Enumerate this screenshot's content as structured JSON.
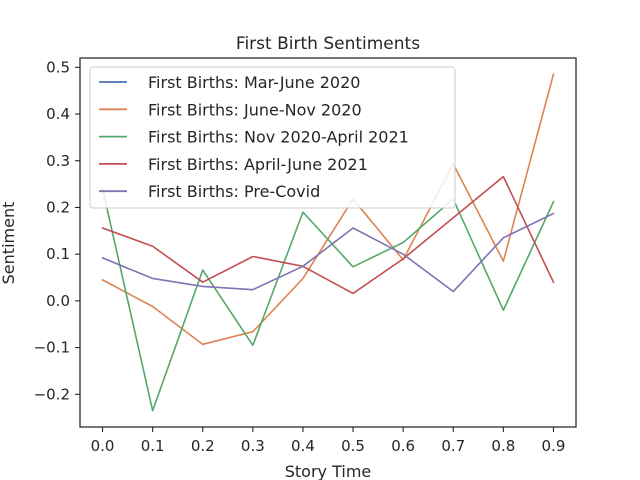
{
  "chart_data": {
    "type": "line",
    "title": "First Birth Sentiments",
    "xlabel": "Story Time",
    "ylabel": "Sentiment",
    "x": [
      0.0,
      0.1,
      0.2,
      0.3,
      0.4,
      0.5,
      0.6,
      0.7,
      0.8,
      0.9
    ],
    "xlim": [
      -0.045,
      0.945
    ],
    "ylim": [
      -0.27,
      0.52
    ],
    "x_ticks": [
      0.0,
      0.1,
      0.2,
      0.3,
      0.4,
      0.5,
      0.6,
      0.7,
      0.8,
      0.9
    ],
    "x_tick_labels": [
      "0.0",
      "0.1",
      "0.2",
      "0.3",
      "0.4",
      "0.5",
      "0.6",
      "0.7",
      "0.8",
      "0.9"
    ],
    "y_ticks": [
      -0.2,
      -0.1,
      0.0,
      0.1,
      0.2,
      0.3,
      0.4,
      0.5
    ],
    "y_tick_labels": [
      "−0.2",
      "−0.1",
      "0.0",
      "0.1",
      "0.2",
      "0.3",
      "0.4",
      "0.5"
    ],
    "grid": false,
    "legend_position": "top-left",
    "series": [
      {
        "name": "First Births: Mar-June 2020",
        "color": "#4c72b0",
        "values": [
          null,
          null,
          null,
          null,
          null,
          null,
          null,
          null,
          null,
          null
        ]
      },
      {
        "name": "First Births: June-Nov 2020",
        "color": "#dd8452",
        "values": [
          0.045,
          -0.012,
          -0.093,
          -0.066,
          0.048,
          0.218,
          0.088,
          0.293,
          0.085,
          0.485
        ]
      },
      {
        "name": "First Births: Nov 2020-April 2021",
        "color": "#55a868",
        "values": [
          0.24,
          -0.235,
          0.066,
          -0.095,
          0.19,
          0.073,
          0.125,
          0.218,
          -0.02,
          0.212
        ]
      },
      {
        "name": "First Births: April-June 2021",
        "color": "#c44e52",
        "values": [
          0.156,
          0.117,
          0.04,
          0.095,
          0.074,
          0.016,
          0.09,
          0.178,
          0.266,
          0.04
        ]
      },
      {
        "name": "First Births: Pre-Covid",
        "color": "#8172b3",
        "values": [
          0.092,
          0.048,
          0.031,
          0.024,
          0.074,
          0.156,
          0.1,
          0.02,
          0.135,
          0.187
        ]
      }
    ]
  }
}
